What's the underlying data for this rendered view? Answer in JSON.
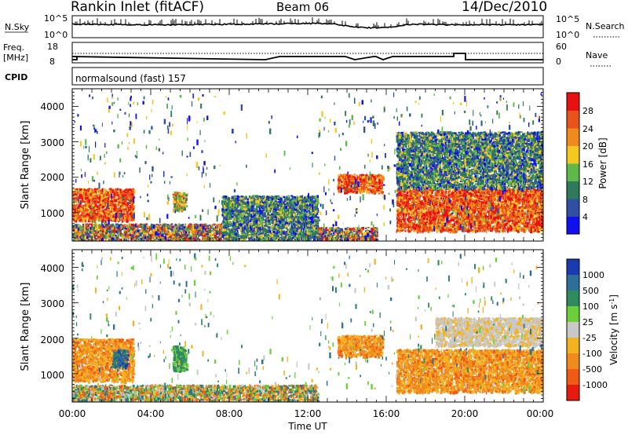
{
  "header": {
    "station": "Rankin Inlet (fitACF)",
    "beam": "Beam 06",
    "date": "14/Dec/2010"
  },
  "panels": {
    "nsky": {
      "left_label": "N.Sky",
      "tick_top": "10^5",
      "tick_bottom": "10^0",
      "right_tick_top": "10^5",
      "right_tick_bottom": "10^0",
      "right_label": "N.Search"
    },
    "freq": {
      "left_label_1": "Freq.",
      "left_label_2": "[MHz]",
      "tick_top": "18",
      "tick_bottom": "8",
      "right_tick_top": "60",
      "right_tick_bottom": "0",
      "right_label": "Nave"
    },
    "cpid": {
      "label": "CPID",
      "program": "normalsound (fast) 157"
    }
  },
  "axes": {
    "ylabel": "Slant Range [km]",
    "yticks": [
      "1000",
      "2000",
      "3000",
      "4000"
    ],
    "xlabel": "Time UT",
    "xticks": [
      "00:00",
      "04:00",
      "08:00",
      "12:00",
      "16:00",
      "20:00",
      "00:00"
    ]
  },
  "colorbars": {
    "power": {
      "label": "Power [dB]",
      "ticks": [
        "4",
        "8",
        "12",
        "16",
        "20",
        "24",
        "28"
      ],
      "colors": [
        "#1010ee",
        "#2e4fa3",
        "#2f7a5a",
        "#5fb84a",
        "#f3c81f",
        "#f08a1e",
        "#e8531c",
        "#e81010"
      ]
    },
    "velocity": {
      "label": "Velocity [m s",
      "label_sup": "-1",
      "label_end": "]",
      "ticks": [
        "1000",
        "500",
        "100",
        "25",
        "-25",
        "-100",
        "-500",
        "-1000"
      ],
      "colors": [
        "#1a3bb0",
        "#2e6f9a",
        "#2f8a5e",
        "#6ccf3a",
        "#c8c8c8",
        "#f3b21f",
        "#f08a1e",
        "#ef5a14",
        "#e81a10"
      ]
    }
  },
  "chart_data": {
    "type": "heatmap",
    "title": "Rankin Inlet (fitACF)",
    "xlabel": "Time UT",
    "ylabel": "Slant Range [km]",
    "xlim": [
      0,
      24
    ],
    "ylim": [
      200,
      4500
    ],
    "power_blobs": [
      {
        "t0": 0.0,
        "t1": 3.1,
        "r0": 800,
        "r1": 1700,
        "level": "high"
      },
      {
        "t0": 0.0,
        "t1": 3.0,
        "r0": 200,
        "r1": 700,
        "level": "mixed"
      },
      {
        "t0": 3.0,
        "t1": 7.6,
        "r0": 200,
        "r1": 700,
        "level": "mixed"
      },
      {
        "t0": 5.1,
        "t1": 5.8,
        "r0": 1100,
        "r1": 1600,
        "level": "mid"
      },
      {
        "t0": 7.6,
        "t1": 12.5,
        "r0": 200,
        "r1": 1500,
        "level": "low"
      },
      {
        "t0": 12.5,
        "t1": 15.5,
        "r0": 200,
        "r1": 600,
        "level": "mixed"
      },
      {
        "t0": 13.5,
        "t1": 15.8,
        "r0": 1600,
        "r1": 2100,
        "level": "high"
      },
      {
        "t0": 16.5,
        "t1": 24.0,
        "r0": 500,
        "r1": 1700,
        "level": "high"
      },
      {
        "t0": 16.5,
        "t1": 24.0,
        "r0": 1700,
        "r1": 3300,
        "level": "low"
      }
    ],
    "velocity_blobs": [
      {
        "t0": 0.0,
        "t1": 3.1,
        "r0": 800,
        "r1": 2000,
        "level": "-100"
      },
      {
        "t0": 2.0,
        "t1": 2.8,
        "r0": 1200,
        "r1": 1700,
        "level": "500"
      },
      {
        "t0": 5.1,
        "t1": 5.8,
        "r0": 1100,
        "r1": 1800,
        "level": "100"
      },
      {
        "t0": 0.0,
        "t1": 12.5,
        "r0": 200,
        "r1": 700,
        "level": "mixed"
      },
      {
        "t0": 13.5,
        "t1": 15.8,
        "r0": 1500,
        "r1": 2100,
        "level": "-100"
      },
      {
        "t0": 16.5,
        "t1": 24.0,
        "r0": 500,
        "r1": 1700,
        "level": "-100"
      },
      {
        "t0": 18.5,
        "t1": 24.0,
        "r0": 1800,
        "r1": 2600,
        "level": "-25"
      }
    ]
  }
}
